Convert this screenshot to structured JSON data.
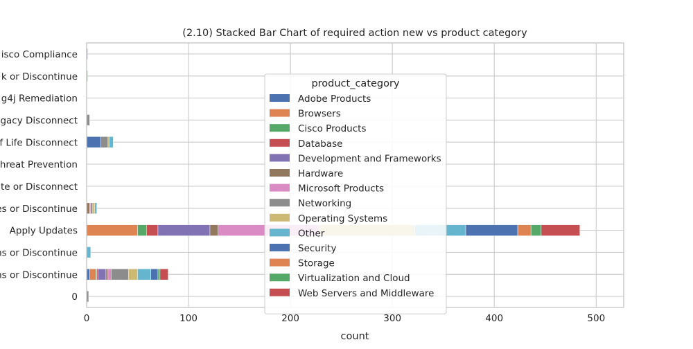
{
  "chart_data": {
    "type": "bar",
    "orientation": "horizontal",
    "stacked": true,
    "title": "(2.10) Stacked Bar Chart of  required action new vs product category",
    "xlabel": "count",
    "ylabel": "",
    "xlim": [
      0,
      527
    ],
    "xticks": [
      "0",
      "100",
      "200",
      "300",
      "400",
      "500"
    ],
    "grid": true,
    "legend": {
      "title": "product_category",
      "placement": "center"
    },
    "categories": [
      "0",
      "ns or Discontinue",
      "ns or Discontinue",
      "Apply Updates",
      "es or Discontinue",
      "ate or Disconnect",
      "hreat Prevention",
      "f Life Disconnect",
      "gacy Disconnect",
      "g4j Remediation",
      "k or Discontinue",
      "isco Compliance"
    ],
    "series": [
      {
        "name": "Adobe Products",
        "color": "#4c72b0",
        "values": [
          0,
          3,
          0,
          0,
          0,
          0,
          0,
          14,
          0,
          0,
          0,
          0
        ]
      },
      {
        "name": "Browsers",
        "color": "#dd8452",
        "values": [
          0,
          6,
          0,
          50,
          0,
          0,
          0,
          0,
          0,
          0,
          0,
          0
        ]
      },
      {
        "name": "Cisco Products",
        "color": "#55a868",
        "values": [
          0,
          1,
          0,
          9,
          0,
          0,
          0,
          0,
          0,
          0,
          1,
          0
        ]
      },
      {
        "name": "Database",
        "color": "#c44e52",
        "values": [
          0,
          1,
          0,
          11,
          0,
          0,
          0,
          0,
          0,
          0,
          0,
          0
        ]
      },
      {
        "name": "Development and Frameworks",
        "color": "#8172b3",
        "values": [
          0,
          8,
          0,
          51,
          0,
          0,
          0,
          0,
          0,
          0,
          0,
          1
        ]
      },
      {
        "name": "Hardware",
        "color": "#937860",
        "values": [
          0,
          2,
          0,
          8,
          3,
          0,
          0,
          0,
          0,
          0,
          0,
          0
        ]
      },
      {
        "name": "Microsoft Products",
        "color": "#da8bc3",
        "values": [
          0,
          3,
          0,
          99,
          1,
          0,
          0,
          0,
          0,
          0,
          0,
          0
        ]
      },
      {
        "name": "Networking",
        "color": "#8c8c8c",
        "values": [
          2,
          17,
          0,
          0,
          2,
          0,
          0,
          7,
          3,
          0,
          0,
          0
        ]
      },
      {
        "name": "Operating Systems",
        "color": "#ccb974",
        "values": [
          0,
          9,
          0,
          94,
          2,
          0,
          0,
          1,
          0,
          0,
          0,
          0
        ]
      },
      {
        "name": "Other",
        "color": "#64b5cd",
        "values": [
          0,
          13,
          4,
          50,
          2,
          0,
          0,
          4,
          0,
          0,
          0,
          0
        ]
      },
      {
        "name": "Security",
        "color": "#4c72b0",
        "values": [
          0,
          7,
          0,
          51,
          0,
          0,
          0,
          0,
          0,
          0,
          0,
          0
        ]
      },
      {
        "name": "Storage",
        "color": "#dd8452",
        "values": [
          0,
          0,
          0,
          13,
          0,
          0,
          0,
          0,
          0,
          0,
          0,
          0
        ]
      },
      {
        "name": "Virtualization and Cloud",
        "color": "#55a868",
        "values": [
          0,
          2,
          0,
          10,
          0,
          0,
          0,
          0,
          0,
          0,
          0,
          0
        ]
      },
      {
        "name": "Web Servers and Middleware",
        "color": "#c44e52",
        "values": [
          0,
          8,
          0,
          38,
          0,
          0,
          0,
          0,
          0,
          0,
          0,
          0
        ]
      }
    ]
  }
}
